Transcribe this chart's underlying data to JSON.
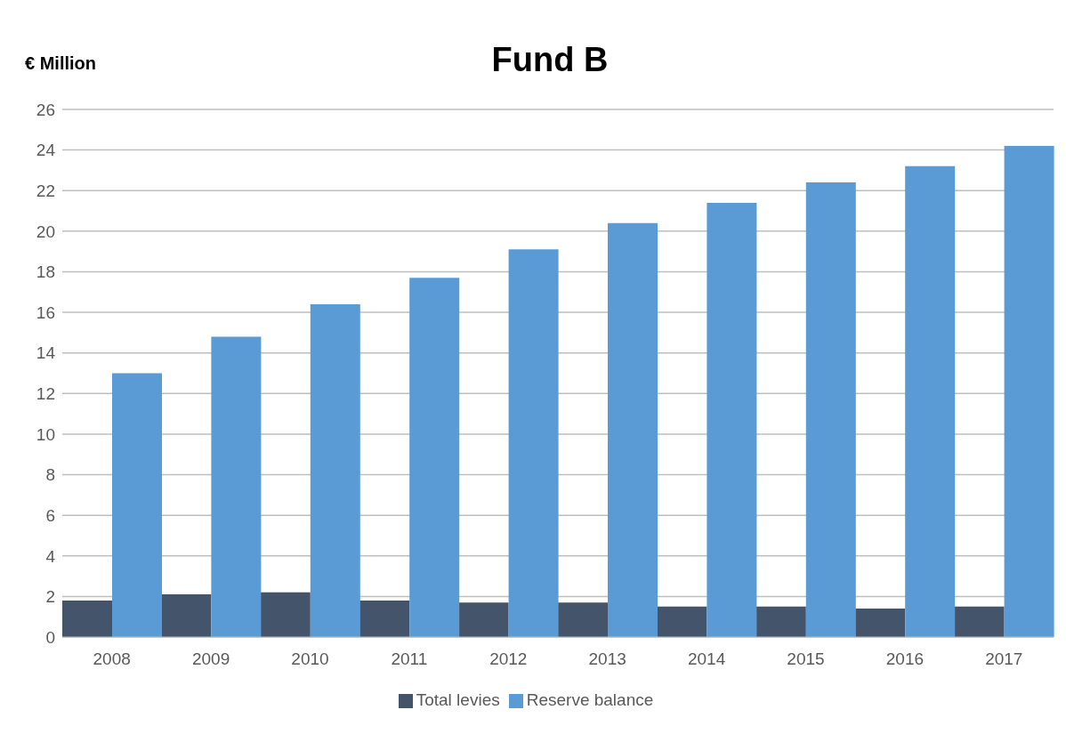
{
  "chart_data": {
    "type": "bar",
    "title": "Fund B",
    "ylabel": "€ Million",
    "categories": [
      "2008",
      "2009",
      "2010",
      "2011",
      "2012",
      "2013",
      "2014",
      "2015",
      "2016",
      "2017"
    ],
    "series": [
      {
        "name": "Total levies",
        "color": "#44546a",
        "values": [
          1.8,
          2.1,
          2.2,
          1.8,
          1.7,
          1.7,
          1.5,
          1.5,
          1.4,
          1.5
        ]
      },
      {
        "name": "Reserve balance",
        "color": "#5b9bd5",
        "values": [
          13.0,
          14.8,
          16.4,
          17.7,
          19.1,
          20.4,
          21.4,
          22.4,
          23.2,
          24.2
        ]
      }
    ],
    "ylim": [
      0,
      26
    ],
    "yticks": [
      0,
      2,
      4,
      6,
      8,
      10,
      12,
      14,
      16,
      18,
      20,
      22,
      24,
      26
    ],
    "grid": "y",
    "legend": "bottom"
  }
}
